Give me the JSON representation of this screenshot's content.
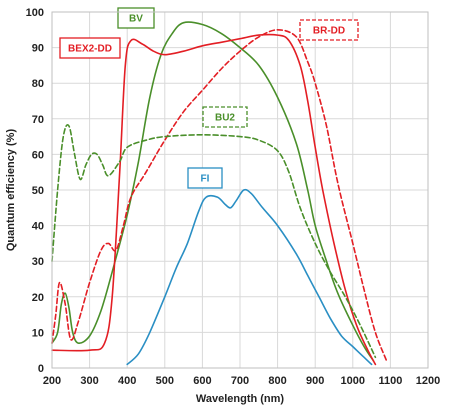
{
  "chart_data": {
    "type": "line",
    "title": "",
    "xlabel": "Wavelength (nm)",
    "ylabel": "Quantum efficiency (%)",
    "xlim": [
      200,
      1200
    ],
    "ylim": [
      0,
      100
    ],
    "x_ticks": [
      200,
      300,
      400,
      500,
      600,
      700,
      800,
      900,
      1000,
      1100,
      1200
    ],
    "y_ticks": [
      0,
      10,
      20,
      30,
      40,
      50,
      60,
      70,
      80,
      90,
      100
    ],
    "grid": true,
    "legend": "inline labels",
    "series": [
      {
        "name": "BV",
        "color": "#4a8f2a",
        "style": "solid",
        "points": [
          [
            200,
            7
          ],
          [
            215,
            10
          ],
          [
            225,
            18
          ],
          [
            235,
            21
          ],
          [
            245,
            17
          ],
          [
            255,
            10
          ],
          [
            270,
            7
          ],
          [
            300,
            9
          ],
          [
            330,
            16
          ],
          [
            360,
            27
          ],
          [
            400,
            43
          ],
          [
            430,
            58
          ],
          [
            460,
            76
          ],
          [
            490,
            88
          ],
          [
            520,
            94
          ],
          [
            550,
            97
          ],
          [
            600,
            96.5
          ],
          [
            650,
            94
          ],
          [
            700,
            90
          ],
          [
            750,
            85
          ],
          [
            800,
            76
          ],
          [
            850,
            63
          ],
          [
            880,
            50
          ],
          [
            900,
            40
          ],
          [
            930,
            30
          ],
          [
            960,
            21
          ],
          [
            1000,
            12
          ],
          [
            1030,
            6
          ],
          [
            1055,
            2
          ]
        ]
      },
      {
        "name": "BEX2-DD",
        "color": "#e31e24",
        "style": "solid",
        "points": [
          [
            200,
            5
          ],
          [
            300,
            5
          ],
          [
            340,
            7
          ],
          [
            360,
            20
          ],
          [
            380,
            55
          ],
          [
            395,
            85
          ],
          [
            410,
            92
          ],
          [
            440,
            91
          ],
          [
            470,
            89
          ],
          [
            500,
            88
          ],
          [
            550,
            89
          ],
          [
            600,
            90.5
          ],
          [
            650,
            91.5
          ],
          [
            700,
            92.5
          ],
          [
            750,
            93.5
          ],
          [
            800,
            93.5
          ],
          [
            830,
            92
          ],
          [
            860,
            85
          ],
          [
            880,
            75
          ],
          [
            900,
            62
          ],
          [
            920,
            50
          ],
          [
            950,
            35
          ],
          [
            980,
            22
          ],
          [
            1010,
            12
          ],
          [
            1040,
            5
          ],
          [
            1060,
            1
          ]
        ]
      },
      {
        "name": "BR-DD",
        "color": "#e31e24",
        "style": "dashed",
        "points": [
          [
            200,
            7
          ],
          [
            210,
            15
          ],
          [
            220,
            24
          ],
          [
            235,
            18
          ],
          [
            250,
            8
          ],
          [
            270,
            13
          ],
          [
            300,
            24
          ],
          [
            330,
            33
          ],
          [
            350,
            35
          ],
          [
            370,
            33
          ],
          [
            390,
            40
          ],
          [
            410,
            48
          ],
          [
            450,
            55
          ],
          [
            500,
            64
          ],
          [
            550,
            72
          ],
          [
            600,
            78
          ],
          [
            650,
            84
          ],
          [
            700,
            89
          ],
          [
            750,
            93
          ],
          [
            800,
            95
          ],
          [
            850,
            93
          ],
          [
            880,
            86
          ],
          [
            900,
            80
          ],
          [
            930,
            68
          ],
          [
            960,
            52
          ],
          [
            1000,
            35
          ],
          [
            1030,
            22
          ],
          [
            1060,
            10
          ],
          [
            1090,
            2
          ]
        ]
      },
      {
        "name": "BU2",
        "color": "#4a8f2a",
        "style": "dashed",
        "points": [
          [
            200,
            30
          ],
          [
            215,
            50
          ],
          [
            230,
            65
          ],
          [
            245,
            68
          ],
          [
            260,
            60
          ],
          [
            275,
            53
          ],
          [
            290,
            57
          ],
          [
            305,
            60
          ],
          [
            320,
            60
          ],
          [
            335,
            57
          ],
          [
            350,
            54
          ],
          [
            380,
            58
          ],
          [
            400,
            62
          ],
          [
            450,
            64
          ],
          [
            500,
            65
          ],
          [
            600,
            65.5
          ],
          [
            700,
            65
          ],
          [
            750,
            64
          ],
          [
            800,
            61
          ],
          [
            830,
            55
          ],
          [
            860,
            45
          ],
          [
            900,
            35
          ],
          [
            940,
            27
          ],
          [
            980,
            20
          ],
          [
            1020,
            12
          ],
          [
            1060,
            3
          ]
        ]
      },
      {
        "name": "FI",
        "color": "#2a8fc4",
        "style": "solid",
        "points": [
          [
            400,
            1
          ],
          [
            430,
            4
          ],
          [
            460,
            10
          ],
          [
            500,
            20
          ],
          [
            530,
            28
          ],
          [
            560,
            35
          ],
          [
            590,
            44
          ],
          [
            610,
            48
          ],
          [
            640,
            48
          ],
          [
            660,
            46
          ],
          [
            675,
            45
          ],
          [
            690,
            47
          ],
          [
            710,
            50
          ],
          [
            730,
            49
          ],
          [
            760,
            45
          ],
          [
            800,
            40
          ],
          [
            850,
            32
          ],
          [
            880,
            26
          ],
          [
            910,
            20
          ],
          [
            940,
            14
          ],
          [
            970,
            9
          ],
          [
            1000,
            6
          ],
          [
            1030,
            3
          ],
          [
            1050,
            1
          ]
        ]
      }
    ]
  },
  "labels": [
    {
      "key": "bv",
      "text": "BV",
      "color": "#4a8f2a",
      "border": "solid"
    },
    {
      "key": "bex2dd",
      "text": "BEX2-DD",
      "color": "#e31e24",
      "border": "solid"
    },
    {
      "key": "brdd",
      "text": "BR-DD",
      "color": "#e31e24",
      "border": "dashed"
    },
    {
      "key": "bu2",
      "text": "BU2",
      "color": "#4a8f2a",
      "border": "dashed"
    },
    {
      "key": "fi",
      "text": "FI",
      "color": "#2a8fc4",
      "border": "solid"
    }
  ]
}
